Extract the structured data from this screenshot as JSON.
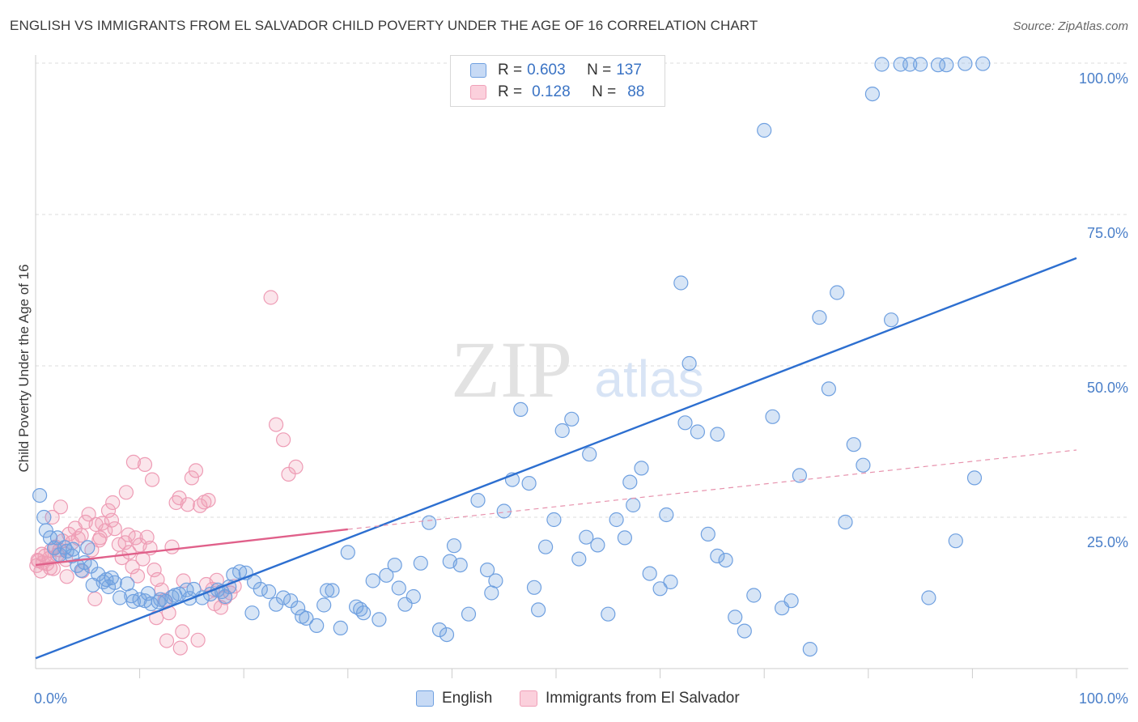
{
  "chart_data": {
    "type": "scatter",
    "title": "ENGLISH VS IMMIGRANTS FROM EL SALVADOR CHILD POVERTY UNDER THE AGE OF 16 CORRELATION CHART",
    "source": "Source: ZipAtlas.com",
    "ylabel": "Child Poverty Under the Age of 16",
    "xlabel": "",
    "xlim": [
      0,
      100
    ],
    "ylim": [
      0,
      100
    ],
    "x_tick_labels": {
      "min": "0.0%",
      "max": "100.0%"
    },
    "y_tick_labels": [
      "100.0%",
      "75.0%",
      "50.0%",
      "25.0%"
    ],
    "y_tick_values": [
      100,
      75,
      50,
      25
    ],
    "watermark": {
      "zip": "ZIP",
      "atlas": "atlas"
    },
    "legend": {
      "rows": [
        {
          "r_label": "R = ",
          "r_value": "0.603",
          "n_label": "N = ",
          "n_value": "137"
        },
        {
          "r_label": "R = ",
          "r_value": "0.128",
          "n_label": "N = ",
          "n_value": "88"
        }
      ]
    },
    "series": [
      {
        "name": "English",
        "color": "#6fa0e0",
        "line_color": "#2d6fd0",
        "regression": {
          "x": [
            0,
            100
          ],
          "y": [
            1.7,
            67.8
          ]
        },
        "points": [
          [
            0.4,
            28.6
          ],
          [
            0.8,
            25.0
          ],
          [
            1.4,
            21.6
          ],
          [
            1.8,
            19.9
          ],
          [
            2.3,
            18.8
          ],
          [
            2.8,
            20.0
          ],
          [
            3.0,
            19.4
          ],
          [
            3.5,
            18.6
          ],
          [
            4.0,
            17.0
          ],
          [
            4.4,
            16.2
          ],
          [
            5.0,
            20.0
          ],
          [
            5.5,
            13.8
          ],
          [
            6.0,
            15.6
          ],
          [
            6.5,
            14.3
          ],
          [
            7.0,
            13.5
          ],
          [
            7.6,
            14.2
          ],
          [
            8.1,
            11.7
          ],
          [
            8.8,
            14.0
          ],
          [
            9.4,
            11.1
          ],
          [
            10.0,
            11.4
          ],
          [
            10.5,
            11.2
          ],
          [
            11.1,
            10.7
          ],
          [
            11.8,
            11.0
          ],
          [
            12.5,
            11.1
          ],
          [
            13.1,
            11.8
          ],
          [
            13.8,
            12.3
          ],
          [
            14.5,
            13.0
          ],
          [
            15.2,
            13.1
          ],
          [
            16.0,
            11.7
          ],
          [
            16.8,
            12.3
          ],
          [
            17.5,
            13.0
          ],
          [
            18.2,
            11.9
          ],
          [
            19.0,
            15.5
          ],
          [
            19.6,
            16.0
          ],
          [
            20.2,
            15.8
          ],
          [
            21.0,
            14.3
          ],
          [
            21.6,
            13.1
          ],
          [
            22.4,
            12.7
          ],
          [
            23.1,
            10.6
          ],
          [
            23.8,
            11.7
          ],
          [
            24.5,
            11.2
          ],
          [
            25.2,
            10.0
          ],
          [
            26.0,
            8.3
          ],
          [
            27.0,
            7.1
          ],
          [
            27.7,
            10.5
          ],
          [
            28.5,
            12.9
          ],
          [
            29.3,
            6.7
          ],
          [
            30.0,
            19.2
          ],
          [
            30.8,
            10.2
          ],
          [
            31.5,
            9.2
          ],
          [
            32.4,
            14.5
          ],
          [
            33.0,
            8.1
          ],
          [
            33.7,
            15.4
          ],
          [
            34.5,
            17.1
          ],
          [
            35.5,
            10.6
          ],
          [
            36.3,
            11.9
          ],
          [
            37.0,
            17.4
          ],
          [
            37.8,
            24.1
          ],
          [
            38.8,
            6.4
          ],
          [
            39.5,
            5.6
          ],
          [
            40.2,
            20.3
          ],
          [
            40.8,
            17.1
          ],
          [
            41.6,
            9.0
          ],
          [
            42.5,
            27.8
          ],
          [
            43.4,
            16.3
          ],
          [
            44.2,
            14.5
          ],
          [
            45.0,
            26.0
          ],
          [
            45.8,
            31.2
          ],
          [
            46.6,
            42.8
          ],
          [
            47.4,
            30.6
          ],
          [
            48.3,
            9.7
          ],
          [
            49.0,
            20.1
          ],
          [
            49.8,
            24.6
          ],
          [
            50.6,
            39.3
          ],
          [
            51.5,
            41.2
          ],
          [
            52.2,
            18.1
          ],
          [
            53.2,
            35.4
          ],
          [
            54.0,
            20.4
          ],
          [
            55.0,
            9.0
          ],
          [
            55.8,
            24.6
          ],
          [
            56.6,
            21.6
          ],
          [
            57.4,
            27.0
          ],
          [
            58.2,
            33.1
          ],
          [
            59.0,
            15.7
          ],
          [
            60.0,
            13.2
          ],
          [
            61.0,
            14.3
          ],
          [
            62.0,
            63.7
          ],
          [
            62.8,
            50.4
          ],
          [
            63.6,
            39.1
          ],
          [
            64.6,
            22.2
          ],
          [
            65.5,
            18.6
          ],
          [
            66.3,
            17.9
          ],
          [
            67.2,
            8.5
          ],
          [
            68.1,
            6.2
          ],
          [
            69.0,
            12.1
          ],
          [
            70.0,
            88.9
          ],
          [
            70.8,
            41.6
          ],
          [
            71.7,
            10.0
          ],
          [
            72.6,
            11.2
          ],
          [
            73.4,
            31.9
          ],
          [
            74.4,
            3.2
          ],
          [
            75.3,
            58.0
          ],
          [
            76.2,
            46.2
          ],
          [
            77.0,
            62.1
          ],
          [
            77.8,
            24.2
          ],
          [
            78.6,
            37.0
          ],
          [
            79.5,
            33.6
          ],
          [
            80.4,
            94.9
          ],
          [
            81.3,
            99.8
          ],
          [
            82.2,
            57.6
          ],
          [
            83.1,
            99.8
          ],
          [
            84.0,
            99.8
          ],
          [
            85.0,
            99.8
          ],
          [
            85.8,
            11.7
          ],
          [
            86.7,
            99.7
          ],
          [
            87.5,
            99.7
          ],
          [
            88.4,
            21.1
          ],
          [
            89.3,
            99.9
          ],
          [
            90.2,
            31.5
          ],
          [
            91.0,
            99.9
          ],
          [
            62.4,
            40.6
          ],
          [
            65.5,
            38.7
          ],
          [
            60.6,
            25.4
          ],
          [
            57.1,
            30.8
          ],
          [
            52.9,
            21.7
          ],
          [
            47.9,
            13.4
          ],
          [
            43.8,
            12.5
          ],
          [
            39.8,
            17.7
          ],
          [
            34.9,
            13.3
          ],
          [
            31.2,
            9.8
          ],
          [
            28.0,
            12.9
          ],
          [
            25.6,
            8.6
          ],
          [
            20.8,
            9.2
          ],
          [
            17.9,
            12.7
          ],
          [
            14.8,
            11.6
          ],
          [
            12.0,
            11.4
          ],
          [
            9.2,
            12.0
          ],
          [
            6.8,
            14.7
          ],
          [
            5.3,
            16.9
          ],
          [
            3.6,
            19.7
          ],
          [
            2.1,
            21.6
          ],
          [
            1.0,
            22.8
          ],
          [
            4.7,
            17.5
          ],
          [
            7.3,
            15.0
          ],
          [
            10.8,
            12.4
          ],
          [
            13.4,
            12.1
          ],
          [
            18.6,
            13.5
          ]
        ]
      },
      {
        "name": "Immigrants from El Salvador",
        "color": "#f0a0b8",
        "line_color": "#e0608a",
        "regression": {
          "x": [
            0,
            30
          ],
          "y": [
            17.1,
            23.0
          ]
        },
        "dashed_extension": {
          "x": [
            30,
            100
          ],
          "y": [
            23.0,
            36.1
          ]
        },
        "points": [
          [
            0.1,
            17.0
          ],
          [
            0.3,
            17.8
          ],
          [
            0.5,
            16.1
          ],
          [
            0.7,
            17.5
          ],
          [
            0.9,
            18.6
          ],
          [
            1.1,
            17.3
          ],
          [
            1.3,
            18.2
          ],
          [
            1.5,
            19.5
          ],
          [
            1.7,
            16.5
          ],
          [
            1.9,
            20.1
          ],
          [
            2.1,
            18.8
          ],
          [
            2.3,
            19.6
          ],
          [
            2.6,
            21.1
          ],
          [
            2.9,
            18.0
          ],
          [
            3.2,
            22.2
          ],
          [
            3.5,
            20.8
          ],
          [
            3.8,
            23.2
          ],
          [
            4.1,
            21.5
          ],
          [
            4.4,
            22.0
          ],
          [
            4.8,
            24.2
          ],
          [
            5.1,
            25.5
          ],
          [
            5.4,
            19.6
          ],
          [
            5.8,
            23.8
          ],
          [
            6.1,
            21.2
          ],
          [
            6.4,
            24.0
          ],
          [
            6.7,
            22.8
          ],
          [
            7.0,
            26.1
          ],
          [
            7.3,
            24.5
          ],
          [
            7.6,
            23.1
          ],
          [
            8.0,
            20.5
          ],
          [
            8.3,
            18.3
          ],
          [
            8.6,
            20.8
          ],
          [
            9.0,
            19.2
          ],
          [
            9.3,
            16.8
          ],
          [
            9.6,
            21.6
          ],
          [
            10.0,
            20.4
          ],
          [
            10.3,
            18.1
          ],
          [
            10.7,
            21.7
          ],
          [
            11.0,
            19.9
          ],
          [
            11.4,
            16.3
          ],
          [
            11.7,
            14.7
          ],
          [
            12.1,
            13.0
          ],
          [
            12.4,
            11.3
          ],
          [
            12.8,
            9.2
          ],
          [
            13.1,
            20.1
          ],
          [
            13.5,
            27.4
          ],
          [
            13.8,
            28.2
          ],
          [
            14.2,
            14.5
          ],
          [
            14.6,
            27.1
          ],
          [
            15.0,
            31.5
          ],
          [
            15.4,
            32.7
          ],
          [
            15.8,
            26.9
          ],
          [
            16.2,
            27.5
          ],
          [
            16.6,
            27.8
          ],
          [
            17.0,
            13.1
          ],
          [
            17.4,
            14.6
          ],
          [
            17.8,
            10.1
          ],
          [
            18.2,
            11.7
          ],
          [
            18.7,
            12.5
          ],
          [
            19.1,
            13.6
          ],
          [
            22.6,
            61.3
          ],
          [
            23.1,
            40.3
          ],
          [
            23.8,
            37.8
          ],
          [
            24.3,
            32.1
          ],
          [
            25.0,
            33.3
          ],
          [
            10.5,
            33.7
          ],
          [
            11.2,
            31.2
          ],
          [
            9.4,
            34.1
          ],
          [
            8.7,
            29.1
          ],
          [
            7.4,
            27.4
          ],
          [
            6.2,
            21.6
          ],
          [
            5.7,
            11.5
          ],
          [
            4.5,
            16.1
          ],
          [
            3.0,
            15.2
          ],
          [
            2.4,
            26.7
          ],
          [
            1.6,
            25.0
          ],
          [
            0.2,
            17.9
          ],
          [
            0.6,
            18.9
          ],
          [
            1.4,
            16.6
          ],
          [
            12.6,
            4.6
          ],
          [
            13.9,
            3.4
          ],
          [
            15.6,
            4.7
          ],
          [
            14.1,
            6.1
          ],
          [
            11.6,
            8.4
          ],
          [
            16.4,
            13.9
          ],
          [
            17.2,
            10.7
          ],
          [
            9.8,
            15.3
          ],
          [
            8.9,
            22.1
          ]
        ]
      }
    ]
  }
}
